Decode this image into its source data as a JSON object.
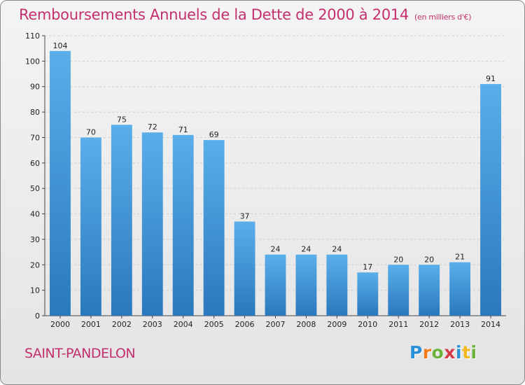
{
  "title": "Remboursements Annuels de la Dette de 2000 à 2014",
  "unit_note": "(en milliers d'€)",
  "commune": "SAINT-PANDELON",
  "logo": {
    "letters": [
      "P",
      "r",
      "o",
      "x",
      "i",
      "t",
      "i"
    ],
    "colors": [
      "#2a8fd6",
      "#f07c1c",
      "#6cb33e",
      "#d63a4a",
      "#2a8fd6",
      "#f2b81e",
      "#6cb33e"
    ]
  },
  "colors": {
    "bar_top": "#5aaeea",
    "bar_bottom": "#2a78bd",
    "title": "#c4306e"
  },
  "chart_data": {
    "type": "bar",
    "title": "Remboursements Annuels de la Dette de 2000 à 2014",
    "xlabel": "",
    "ylabel": "",
    "categories": [
      "2000",
      "2001",
      "2002",
      "2003",
      "2004",
      "2005",
      "2006",
      "2007",
      "2008",
      "2009",
      "2010",
      "2011",
      "2012",
      "2013",
      "2014"
    ],
    "values": [
      104,
      70,
      75,
      72,
      71,
      69,
      37,
      24,
      24,
      24,
      17,
      20,
      20,
      21,
      91
    ],
    "ylim": [
      0,
      110
    ],
    "yticks": [
      0,
      10,
      20,
      30,
      40,
      50,
      60,
      70,
      80,
      90,
      100,
      110
    ],
    "grid": true
  }
}
